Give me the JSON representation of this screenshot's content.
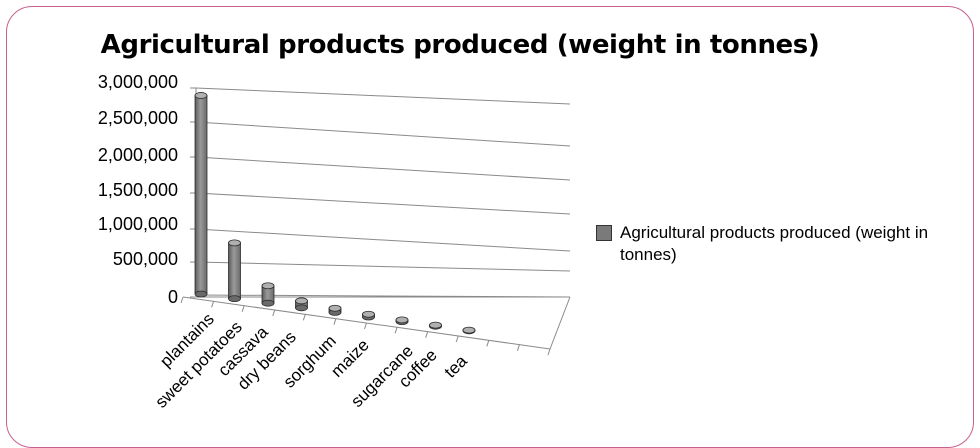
{
  "chart_data": {
    "type": "bar",
    "title": "Agricultural products produced (weight in tonnes)",
    "categories": [
      "plantains",
      "sweet potatoes",
      "cassava",
      "dry beans",
      "sorghum",
      "maize",
      "sugarcane",
      "coffee",
      "tea"
    ],
    "series": [
      {
        "name": "Agricultural products produced (weight in tonnes)",
        "values": [
          2850000,
          800000,
          250000,
          100000,
          60000,
          40000,
          25000,
          15000,
          10000
        ]
      }
    ],
    "yticks": [
      "0",
      "500,000",
      "1,000,000",
      "1,500,000",
      "2,000,000",
      "2,500,000",
      "3,000,000"
    ],
    "ylim": [
      0,
      3000000
    ],
    "grid": true,
    "legend_position": "right",
    "bar_color": "#7a7a7a"
  }
}
